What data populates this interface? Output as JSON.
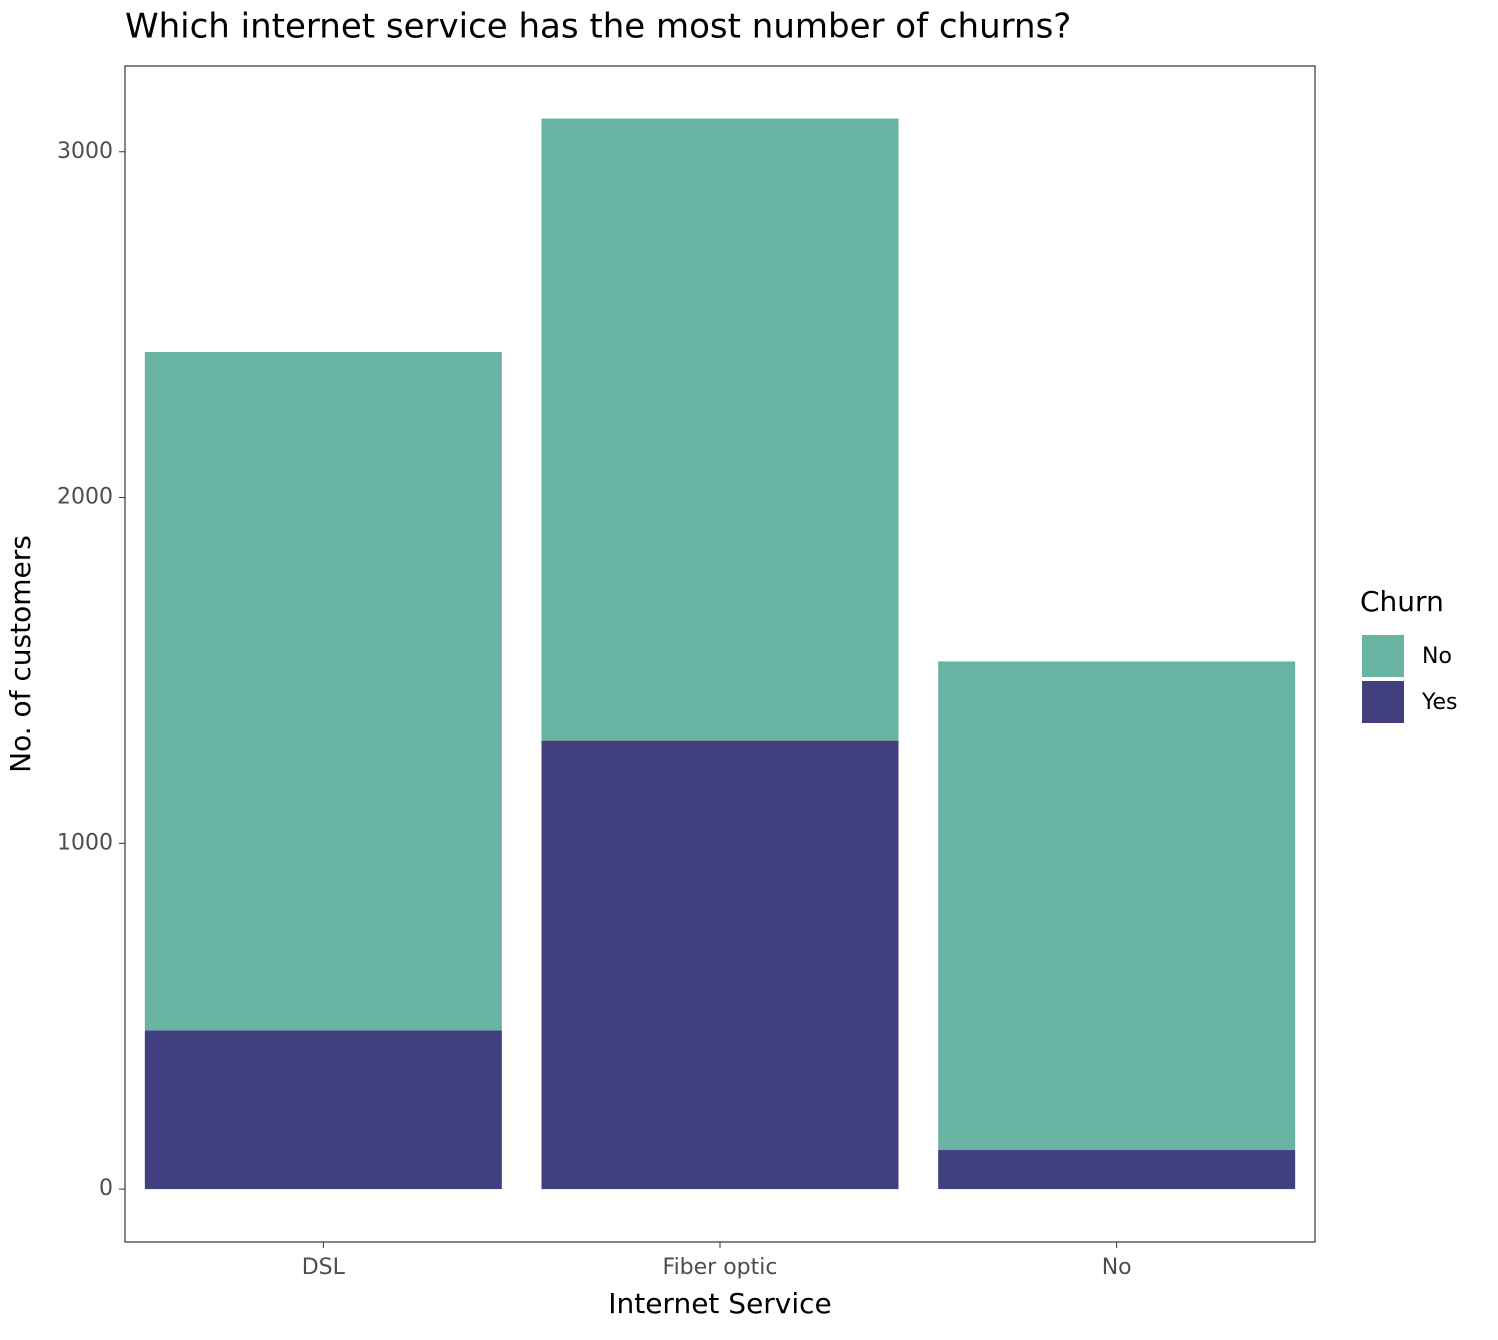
{
  "chart_data": {
    "type": "stacked-bar",
    "title": "Which internet service has the most number of churns?",
    "x_label": "Internet Service",
    "y_label": "No. of customers",
    "categories": [
      "DSL",
      "Fiber optic",
      "No"
    ],
    "legend_title": "Churn",
    "series": [
      {
        "name": "No",
        "color": "#69b3a2",
        "values": [
          1962,
          1799,
          1413
        ]
      },
      {
        "name": "Yes",
        "color": "#423f7f",
        "values": [
          459,
          1297,
          113
        ]
      }
    ],
    "ylim": [
      -153,
      3248
    ],
    "yticks": [
      0,
      1000,
      2000,
      3000
    ],
    "legend_position": "right"
  }
}
